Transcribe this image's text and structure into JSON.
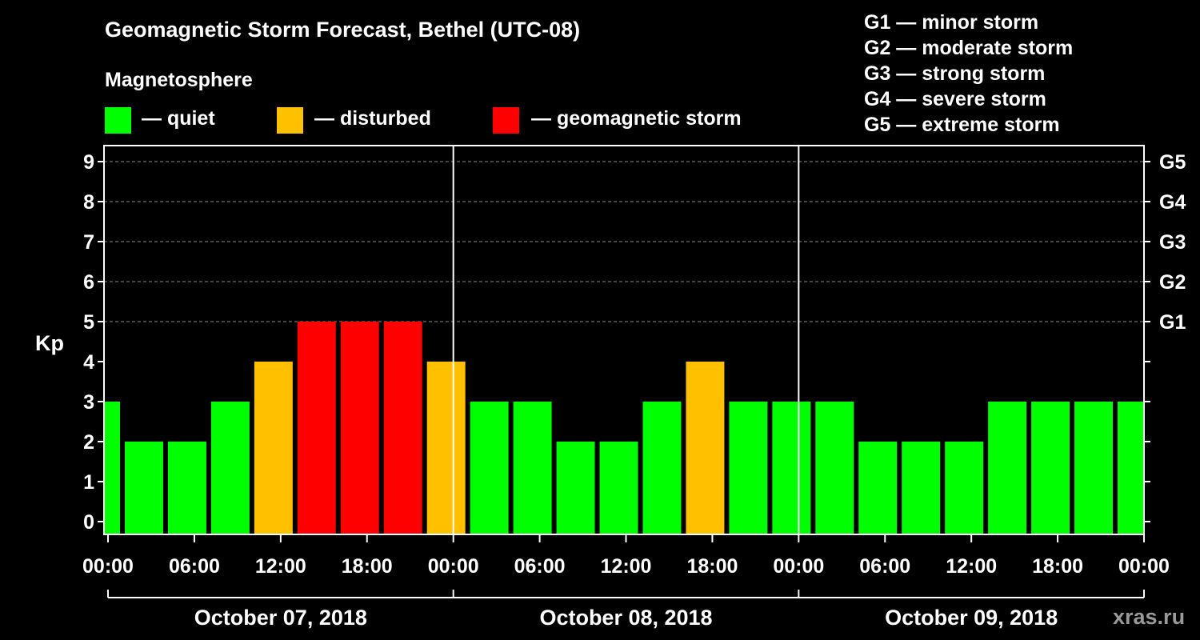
{
  "header": {
    "title": "Geomagnetic Storm Forecast, Bethel (UTC-08)",
    "subtitle": "Magnetosphere"
  },
  "legend": [
    {
      "label": "— quiet",
      "color": "#00ff00"
    },
    {
      "label": "— disturbed",
      "color": "#ffc000"
    },
    {
      "label": "— geomagnetic storm",
      "color": "#ff0000"
    }
  ],
  "storm_scale": [
    "G1 — minor storm",
    "G2 — moderate storm",
    "G3 — strong storm",
    "G4 — severe storm",
    "G5 — extreme storm"
  ],
  "site": "xras.ru",
  "chart_data": {
    "type": "bar",
    "title": "Geomagnetic Storm Forecast, Bethel (UTC-08)",
    "ylabel": "Kp",
    "ylim": [
      0,
      9
    ],
    "yticks": [
      "0",
      "1",
      "2",
      "3",
      "4",
      "5",
      "6",
      "7",
      "8",
      "9"
    ],
    "right_axis": [
      {
        "kp": 5,
        "label": "G1"
      },
      {
        "kp": 6,
        "label": "G2"
      },
      {
        "kp": 7,
        "label": "G3"
      },
      {
        "kp": 8,
        "label": "G4"
      },
      {
        "kp": 9,
        "label": "G5"
      }
    ],
    "x_hours_range": [
      0,
      72
    ],
    "xticks": [
      {
        "hour": 0,
        "label": "00:00"
      },
      {
        "hour": 6,
        "label": "06:00"
      },
      {
        "hour": 12,
        "label": "12:00"
      },
      {
        "hour": 18,
        "label": "18:00"
      },
      {
        "hour": 24,
        "label": "00:00"
      },
      {
        "hour": 30,
        "label": "06:00"
      },
      {
        "hour": 36,
        "label": "12:00"
      },
      {
        "hour": 42,
        "label": "18:00"
      },
      {
        "hour": 48,
        "label": "00:00"
      },
      {
        "hour": 54,
        "label": "06:00"
      },
      {
        "hour": 60,
        "label": "12:00"
      },
      {
        "hour": 66,
        "label": "18:00"
      },
      {
        "hour": 72,
        "label": "00:00"
      }
    ],
    "days": [
      {
        "label": "October 07, 2018",
        "start": 0,
        "end": 24
      },
      {
        "label": "October 08, 2018",
        "start": 24,
        "end": 48
      },
      {
        "label": "October 09, 2018",
        "start": 48,
        "end": 72
      }
    ],
    "day_separators": [
      24,
      48
    ],
    "status_colors": {
      "quiet": "#00ff00",
      "disturbed": "#ffc000",
      "storm": "#ff0000"
    },
    "bars": [
      {
        "start": -2,
        "end": 1,
        "kp": 3,
        "status": "quiet"
      },
      {
        "start": 1,
        "end": 4,
        "kp": 2,
        "status": "quiet"
      },
      {
        "start": 4,
        "end": 7,
        "kp": 2,
        "status": "quiet"
      },
      {
        "start": 7,
        "end": 10,
        "kp": 3,
        "status": "quiet"
      },
      {
        "start": 10,
        "end": 13,
        "kp": 4,
        "status": "disturbed"
      },
      {
        "start": 13,
        "end": 16,
        "kp": 5,
        "status": "storm"
      },
      {
        "start": 16,
        "end": 19,
        "kp": 5,
        "status": "storm"
      },
      {
        "start": 19,
        "end": 22,
        "kp": 5,
        "status": "storm"
      },
      {
        "start": 22,
        "end": 25,
        "kp": 4,
        "status": "disturbed"
      },
      {
        "start": 25,
        "end": 28,
        "kp": 3,
        "status": "quiet"
      },
      {
        "start": 28,
        "end": 31,
        "kp": 3,
        "status": "quiet"
      },
      {
        "start": 31,
        "end": 34,
        "kp": 2,
        "status": "quiet"
      },
      {
        "start": 34,
        "end": 37,
        "kp": 2,
        "status": "quiet"
      },
      {
        "start": 37,
        "end": 40,
        "kp": 3,
        "status": "quiet"
      },
      {
        "start": 40,
        "end": 43,
        "kp": 4,
        "status": "disturbed"
      },
      {
        "start": 43,
        "end": 46,
        "kp": 3,
        "status": "quiet"
      },
      {
        "start": 46,
        "end": 49,
        "kp": 3,
        "status": "quiet"
      },
      {
        "start": 49,
        "end": 52,
        "kp": 3,
        "status": "quiet"
      },
      {
        "start": 52,
        "end": 55,
        "kp": 2,
        "status": "quiet"
      },
      {
        "start": 55,
        "end": 58,
        "kp": 2,
        "status": "quiet"
      },
      {
        "start": 58,
        "end": 61,
        "kp": 2,
        "status": "quiet"
      },
      {
        "start": 61,
        "end": 64,
        "kp": 3,
        "status": "quiet"
      },
      {
        "start": 64,
        "end": 67,
        "kp": 3,
        "status": "quiet"
      },
      {
        "start": 67,
        "end": 70,
        "kp": 3,
        "status": "quiet"
      },
      {
        "start": 70,
        "end": 73,
        "kp": 3,
        "status": "quiet"
      }
    ]
  }
}
